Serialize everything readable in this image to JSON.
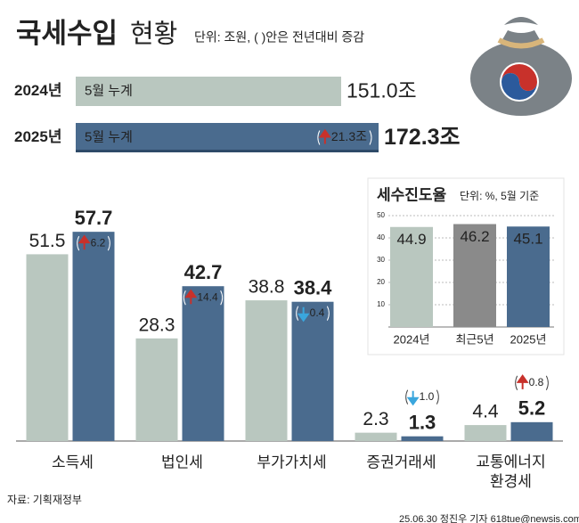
{
  "title": "국세수입",
  "title2": "현황",
  "unit_note": "단위: 조원, ( )안은 전년대비 증감",
  "source": "자료: 기획재정부",
  "credit": "25.06.30 정진우 기자 618tue@newsis.com",
  "arrow_colors": {
    "up": "#c8312b",
    "down": "#3aa6dd"
  },
  "chart_data": [
    {
      "type": "barh",
      "categories": [
        "2024년",
        "2025년"
      ],
      "bar_labels": [
        "5월 누계",
        "5월 누계"
      ],
      "values": [
        151.0,
        172.3
      ],
      "value_labels": [
        "151.0조",
        "172.3조"
      ],
      "changes": [
        null,
        21.3
      ],
      "change_labels": [
        null,
        "21.3조"
      ],
      "colors": [
        "#b9c7bf",
        "#4a6b8e"
      ]
    },
    {
      "type": "grouped_bar",
      "categories": [
        "소득세",
        "법인세",
        "부가가치세",
        "증권거래세",
        "교통에너지 환경세"
      ],
      "series": [
        {
          "color": "#b9c7bf",
          "values": [
            51.5,
            28.3,
            38.8,
            2.3,
            4.4
          ]
        },
        {
          "color": "#4a6b8e",
          "values": [
            57.7,
            42.7,
            38.4,
            1.3,
            5.2
          ]
        }
      ],
      "changes": [
        6.2,
        14.4,
        -0.4,
        -1.0,
        0.8
      ],
      "change_labels": [
        "6.2",
        "14.4",
        "0.4",
        "1.0",
        "0.8"
      ]
    },
    {
      "type": "bar",
      "title": "세수진도율",
      "subtitle": "단위: %, 5월 기준",
      "categories": [
        "2024년",
        "최근5년",
        "2025년"
      ],
      "values": [
        44.9,
        46.2,
        45.1
      ],
      "colors": [
        "#b9c7bf",
        "#8a8a8a",
        "#4a6b8e"
      ],
      "ylim": [
        0,
        50
      ],
      "yticks": [
        10,
        20,
        30,
        40,
        50
      ],
      "grid": true
    }
  ]
}
